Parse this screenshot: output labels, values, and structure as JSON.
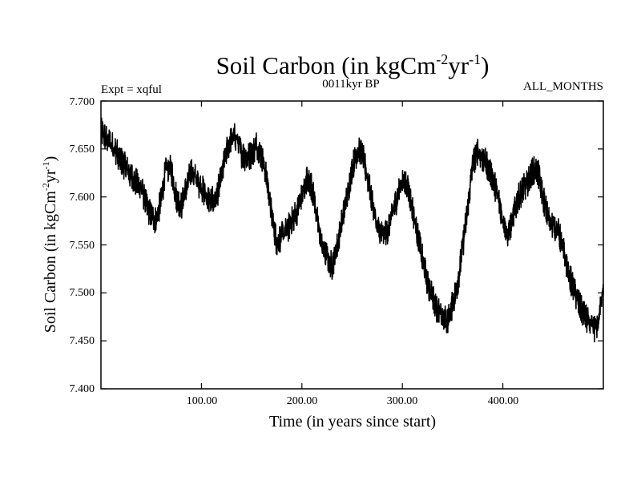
{
  "chart_data": {
    "type": "line",
    "title": "Soil Carbon (in kgCm",
    "title_sup1": "-2",
    "title_mid": "yr",
    "title_sup2": "-1",
    "title_end": ")",
    "subtitle_left": "Expt = xqful",
    "subtitle_center": "0011kyr BP",
    "subtitle_right": "ALL_MONTHS",
    "xlabel": "Time (in years since start)",
    "ylabel": "Soil Carbon (in kgCm",
    "ylabel_sup1": "-2",
    "ylabel_mid": "yr",
    "ylabel_sup2": "-1",
    "ylabel_end": ")",
    "xlim": [
      0,
      500
    ],
    "ylim": [
      7.4,
      7.7
    ],
    "x_ticks": [
      100,
      200,
      300,
      400
    ],
    "x_tick_labels": [
      "100.00",
      "200.00",
      "300.00",
      "400.00"
    ],
    "y_ticks": [
      7.4,
      7.45,
      7.5,
      7.55,
      7.6,
      7.65,
      7.7
    ],
    "y_tick_labels": [
      "7.400",
      "7.450",
      "7.500",
      "7.550",
      "7.600",
      "7.650",
      "7.700"
    ],
    "grid": false,
    "series": [
      {
        "name": "Soil Carbon",
        "color": "#000000",
        "x": [
          0,
          5,
          10,
          15,
          20,
          25,
          30,
          35,
          40,
          45,
          50,
          55,
          60,
          65,
          70,
          75,
          80,
          85,
          90,
          95,
          100,
          105,
          110,
          115,
          120,
          125,
          130,
          135,
          140,
          145,
          150,
          155,
          160,
          165,
          170,
          175,
          180,
          185,
          190,
          195,
          200,
          205,
          210,
          215,
          220,
          225,
          230,
          235,
          240,
          245,
          250,
          255,
          260,
          265,
          270,
          275,
          280,
          285,
          290,
          295,
          300,
          305,
          310,
          315,
          320,
          325,
          330,
          335,
          340,
          345,
          350,
          355,
          360,
          365,
          370,
          375,
          380,
          385,
          390,
          395,
          400,
          405,
          410,
          415,
          420,
          425,
          430,
          435,
          440,
          445,
          450,
          455,
          460,
          465,
          470,
          475,
          480,
          485,
          490,
          495,
          500
        ],
        "y": [
          7.668,
          7.662,
          7.655,
          7.648,
          7.638,
          7.63,
          7.622,
          7.615,
          7.61,
          7.592,
          7.58,
          7.575,
          7.598,
          7.632,
          7.628,
          7.6,
          7.59,
          7.61,
          7.628,
          7.618,
          7.61,
          7.6,
          7.595,
          7.6,
          7.622,
          7.648,
          7.662,
          7.662,
          7.645,
          7.64,
          7.645,
          7.655,
          7.642,
          7.62,
          7.58,
          7.552,
          7.56,
          7.565,
          7.575,
          7.585,
          7.6,
          7.62,
          7.61,
          7.578,
          7.548,
          7.538,
          7.528,
          7.548,
          7.575,
          7.6,
          7.63,
          7.648,
          7.645,
          7.622,
          7.595,
          7.568,
          7.56,
          7.565,
          7.582,
          7.6,
          7.618,
          7.612,
          7.588,
          7.56,
          7.535,
          7.51,
          7.495,
          7.482,
          7.475,
          7.47,
          7.488,
          7.51,
          7.548,
          7.588,
          7.635,
          7.648,
          7.64,
          7.632,
          7.62,
          7.6,
          7.578,
          7.56,
          7.578,
          7.598,
          7.608,
          7.615,
          7.628,
          7.625,
          7.6,
          7.578,
          7.57,
          7.565,
          7.545,
          7.522,
          7.505,
          7.49,
          7.478,
          7.47,
          7.462,
          7.468,
          7.512
        ]
      }
    ]
  }
}
